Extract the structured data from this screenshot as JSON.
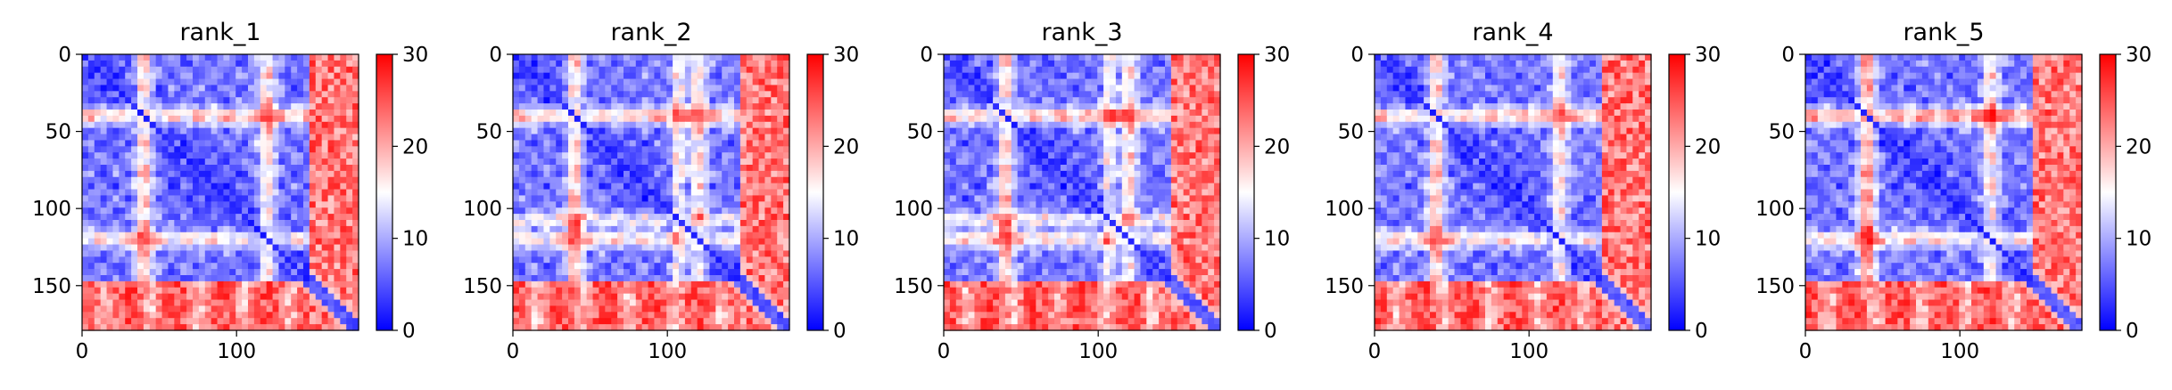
{
  "chart_data": [
    {
      "type": "heatmap",
      "title": "rank_1",
      "x_ticks": [
        "0",
        "100"
      ],
      "y_ticks": [
        "0",
        "50",
        "100",
        "150"
      ],
      "xlim": [
        0,
        179
      ],
      "ylim": [
        179,
        0
      ],
      "colorbar": {
        "range": [
          0,
          30
        ],
        "ticks": [
          "0",
          "10",
          "20",
          "30"
        ],
        "colors": [
          "#0000ff",
          "#ffffff",
          "#ff0000"
        ]
      }
    },
    {
      "type": "heatmap",
      "title": "rank_2",
      "x_ticks": [
        "0",
        "100"
      ],
      "y_ticks": [
        "0",
        "50",
        "100",
        "150"
      ],
      "xlim": [
        0,
        179
      ],
      "ylim": [
        179,
        0
      ],
      "colorbar": {
        "range": [
          0,
          30
        ],
        "ticks": [
          "0",
          "10",
          "20",
          "30"
        ],
        "colors": [
          "#0000ff",
          "#ffffff",
          "#ff0000"
        ]
      }
    },
    {
      "type": "heatmap",
      "title": "rank_3",
      "x_ticks": [
        "0",
        "100"
      ],
      "y_ticks": [
        "0",
        "50",
        "100",
        "150"
      ],
      "xlim": [
        0,
        179
      ],
      "ylim": [
        179,
        0
      ],
      "colorbar": {
        "range": [
          0,
          30
        ],
        "ticks": [
          "0",
          "10",
          "20",
          "30"
        ],
        "colors": [
          "#0000ff",
          "#ffffff",
          "#ff0000"
        ]
      }
    },
    {
      "type": "heatmap",
      "title": "rank_4",
      "x_ticks": [
        "0",
        "100"
      ],
      "y_ticks": [
        "0",
        "50",
        "100",
        "150"
      ],
      "xlim": [
        0,
        179
      ],
      "ylim": [
        179,
        0
      ],
      "colorbar": {
        "range": [
          0,
          30
        ],
        "ticks": [
          "0",
          "10",
          "20",
          "30"
        ],
        "colors": [
          "#0000ff",
          "#ffffff",
          "#ff0000"
        ]
      }
    },
    {
      "type": "heatmap",
      "title": "rank_5",
      "x_ticks": [
        "0",
        "100"
      ],
      "y_ticks": [
        "0",
        "50",
        "100",
        "150"
      ],
      "xlim": [
        0,
        179
      ],
      "ylim": [
        179,
        0
      ],
      "colorbar": {
        "range": [
          0,
          30
        ],
        "ticks": [
          "0",
          "10",
          "20",
          "30"
        ],
        "colors": [
          "#0000ff",
          "#ffffff",
          "#ff0000"
        ]
      }
    }
  ]
}
